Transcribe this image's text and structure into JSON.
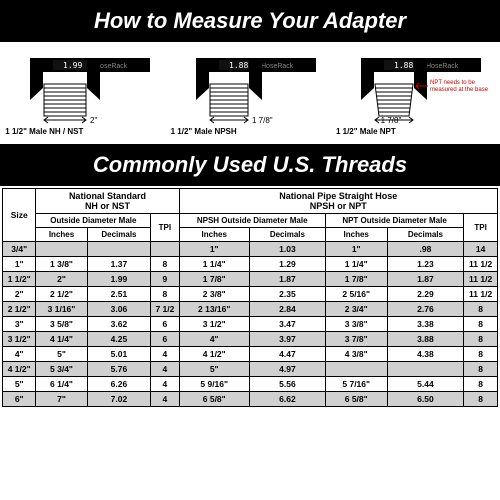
{
  "title1": "How to Measure Your Adapter",
  "title2": "Commonly Used U.S. Threads",
  "calipers": [
    {
      "reading": "1.99",
      "brand": "HoseRack",
      "dim": "2\"",
      "label": "1 1/2\" Male NH / NST"
    },
    {
      "reading": "1.88",
      "brand": "HoseRack",
      "dim": "1 7/8\"",
      "label": "1 1/2\" Male NPSH"
    },
    {
      "reading": "1.88",
      "brand": "HoseRack",
      "dim": "1 7/8\"",
      "label": "1 1/2\" Male NPT",
      "note": "NPT needs to be measured at the base"
    }
  ],
  "table": {
    "corner": "Size",
    "group_left": "National Standard\nNH or NST",
    "group_right": "National Pipe Straight Hose\nNPSH or NPT",
    "sub_left": "Outside Diameter Male",
    "tpi": "TPI",
    "sub_npsh": "NPSH Outside Diameter Male",
    "sub_npt": "NPT Outside Diameter Male",
    "col_in": "Inches",
    "col_dec": "Decimals",
    "rows": [
      {
        "size": "3/4\"",
        "nh_in": "",
        "nh_dec": "",
        "nh_tpi": "",
        "npsh_in": "1\"",
        "npsh_dec": "1.03",
        "npt_in": "1\"",
        "npt_dec": ".98",
        "r_tpi": "14"
      },
      {
        "size": "1\"",
        "nh_in": "1 3/8\"",
        "nh_dec": "1.37",
        "nh_tpi": "8",
        "npsh_in": "1 1/4\"",
        "npsh_dec": "1.29",
        "npt_in": "1 1/4\"",
        "npt_dec": "1.23",
        "r_tpi": "11 1/2"
      },
      {
        "size": "1 1/2\"",
        "nh_in": "2\"",
        "nh_dec": "1.99",
        "nh_tpi": "9",
        "npsh_in": "1 7/8\"",
        "npsh_dec": "1.87",
        "npt_in": "1 7/8\"",
        "npt_dec": "1.87",
        "r_tpi": "11 1/2"
      },
      {
        "size": "2\"",
        "nh_in": "2 1/2\"",
        "nh_dec": "2.51",
        "nh_tpi": "8",
        "npsh_in": "2 3/8\"",
        "npsh_dec": "2.35",
        "npt_in": "2 5/16\"",
        "npt_dec": "2.29",
        "r_tpi": "11 1/2"
      },
      {
        "size": "2 1/2\"",
        "nh_in": "3 1/16\"",
        "nh_dec": "3.06",
        "nh_tpi": "7 1/2",
        "npsh_in": "2 13/16\"",
        "npsh_dec": "2.84",
        "npt_in": "2 3/4\"",
        "npt_dec": "2.76",
        "r_tpi": "8"
      },
      {
        "size": "3\"",
        "nh_in": "3 5/8\"",
        "nh_dec": "3.62",
        "nh_tpi": "6",
        "npsh_in": "3 1/2\"",
        "npsh_dec": "3.47",
        "npt_in": "3 3/8\"",
        "npt_dec": "3.38",
        "r_tpi": "8"
      },
      {
        "size": "3 1/2\"",
        "nh_in": "4 1/4\"",
        "nh_dec": "4.25",
        "nh_tpi": "6",
        "npsh_in": "4\"",
        "npsh_dec": "3.97",
        "npt_in": "3 7/8\"",
        "npt_dec": "3.88",
        "r_tpi": "8"
      },
      {
        "size": "4\"",
        "nh_in": "5\"",
        "nh_dec": "5.01",
        "nh_tpi": "4",
        "npsh_in": "4 1/2\"",
        "npsh_dec": "4.47",
        "npt_in": "4 3/8\"",
        "npt_dec": "4.38",
        "r_tpi": "8"
      },
      {
        "size": "4 1/2\"",
        "nh_in": "5 3/4\"",
        "nh_dec": "5.76",
        "nh_tpi": "4",
        "npsh_in": "5\"",
        "npsh_dec": "4.97",
        "npt_in": "",
        "npt_dec": "",
        "r_tpi": "8"
      },
      {
        "size": "5\"",
        "nh_in": "6 1/4\"",
        "nh_dec": "6.26",
        "nh_tpi": "4",
        "npsh_in": "5 9/16\"",
        "npsh_dec": "5.56",
        "npt_in": "5 7/16\"",
        "npt_dec": "5.44",
        "r_tpi": "8"
      },
      {
        "size": "6\"",
        "nh_in": "7\"",
        "nh_dec": "7.02",
        "nh_tpi": "4",
        "npsh_in": "6 5/8\"",
        "npsh_dec": "6.62",
        "npt_in": "6 5/8\"",
        "npt_dec": "6.50",
        "r_tpi": "8"
      }
    ]
  },
  "colors": {
    "black": "#000000",
    "white": "#ffffff",
    "alt": "#d0d0d0",
    "red": "#d00000",
    "silver": "#808080"
  }
}
